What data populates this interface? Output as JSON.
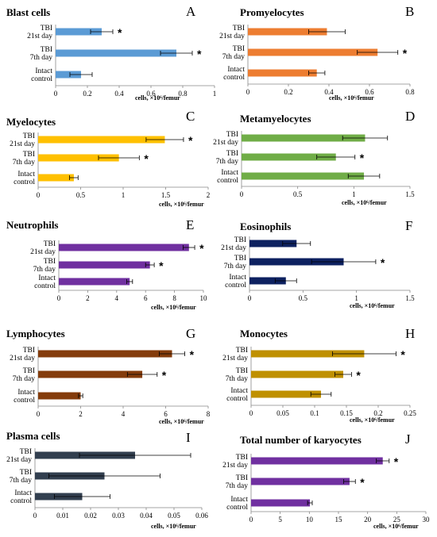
{
  "chart_data": [
    {
      "type": "bar",
      "orientation": "horizontal",
      "title": "Blast cells",
      "letter": "A",
      "color": "#5b9bd5",
      "categories": [
        [
          "TBI",
          "21st day"
        ],
        [
          "TBI",
          "7th day"
        ],
        [
          "Intact",
          "control"
        ]
      ],
      "values": [
        0.29,
        0.76,
        0.16
      ],
      "errors": [
        0.07,
        0.1,
        0.07
      ],
      "significant": [
        true,
        true,
        false
      ],
      "ticks": [
        "0",
        "0.2",
        "0.4",
        "0.6",
        "0.8",
        "1"
      ],
      "xlim": [
        0,
        1
      ],
      "xlabel": "cells, ×10⁶/femur"
    },
    {
      "type": "bar",
      "orientation": "horizontal",
      "title": "Promyelocytes",
      "letter": "B",
      "color": "#ed7d31",
      "categories": [
        [
          "TBI",
          "21st day"
        ],
        [
          "TBI",
          "7th day"
        ],
        [
          "Intact",
          "control"
        ]
      ],
      "values": [
        0.39,
        0.64,
        0.34
      ],
      "errors": [
        0.09,
        0.1,
        0.04
      ],
      "significant": [
        false,
        true,
        false
      ],
      "ticks": [
        "0",
        "0.2",
        "0.4",
        "0.6",
        "0.8"
      ],
      "xlim": [
        0,
        0.8
      ],
      "xlabel": "cells, ×10⁶/femur"
    },
    {
      "type": "bar",
      "orientation": "horizontal",
      "title": "Myelocytes",
      "letter": "C",
      "color": "#ffc000",
      "categories": [
        [
          "TBI",
          "21st day"
        ],
        [
          "TBI",
          "7th day"
        ],
        [
          "Intact",
          "control"
        ]
      ],
      "values": [
        1.49,
        0.95,
        0.42
      ],
      "errors": [
        0.22,
        0.24,
        0.05
      ],
      "significant": [
        true,
        true,
        false
      ],
      "ticks": [
        "0",
        "0.5",
        "1",
        "1.5",
        "2"
      ],
      "xlim": [
        0,
        2
      ],
      "xlabel": "cells, ×10⁶/femur"
    },
    {
      "type": "bar",
      "orientation": "horizontal",
      "title": "Metamyelocytes",
      "letter": "D",
      "color": "#70ad47",
      "categories": [
        [
          "TBI",
          "21st day"
        ],
        [
          "TBI",
          "7th day"
        ],
        [
          "Intact",
          "control"
        ]
      ],
      "values": [
        1.1,
        0.84,
        1.09
      ],
      "errors": [
        0.2,
        0.17,
        0.14
      ],
      "significant": [
        false,
        true,
        false
      ],
      "ticks": [
        "0",
        "0.5",
        "1",
        "1.5"
      ],
      "xlim": [
        0,
        1.5
      ],
      "xlabel": "cells, ×10⁶/femur"
    },
    {
      "type": "bar",
      "orientation": "horizontal",
      "title": "Neutrophils",
      "letter": "E",
      "color": "#7030a0",
      "categories": [
        [
          "TBI",
          "21st day"
        ],
        [
          "TBI",
          "7th day"
        ],
        [
          "Intact",
          "control"
        ]
      ],
      "values": [
        9.0,
        6.3,
        4.9
      ],
      "errors": [
        0.4,
        0.3,
        0.2
      ],
      "significant": [
        true,
        true,
        false
      ],
      "ticks": [
        "0",
        "2",
        "4",
        "6",
        "8",
        "10"
      ],
      "xlim": [
        0,
        10
      ],
      "xlabel": "cells, ×10⁶/femur"
    },
    {
      "type": "bar",
      "orientation": "horizontal",
      "title": "Eosinophils",
      "letter": "F",
      "color": "#0d2160",
      "categories": [
        [
          "TBI",
          "21st day"
        ],
        [
          "TBI",
          "7th day"
        ],
        [
          "Intact",
          "control"
        ]
      ],
      "values": [
        0.44,
        0.88,
        0.34
      ],
      "errors": [
        0.13,
        0.3,
        0.1
      ],
      "significant": [
        false,
        true,
        false
      ],
      "ticks": [
        "0",
        "0.5",
        "1",
        "1.5"
      ],
      "xlim": [
        0,
        1.5
      ],
      "xlabel": "cells, ×10⁶/femur"
    },
    {
      "type": "bar",
      "orientation": "horizontal",
      "title": "Lymphocytes",
      "letter": "G",
      "color": "#843c0c",
      "categories": [
        [
          "TBI",
          "21st day"
        ],
        [
          "TBI",
          "7th day"
        ],
        [
          "Intact",
          "control"
        ]
      ],
      "values": [
        6.3,
        4.9,
        2.0
      ],
      "errors": [
        0.6,
        0.7,
        0.1
      ],
      "significant": [
        true,
        true,
        false
      ],
      "ticks": [
        "0",
        "2",
        "4",
        "6",
        "8"
      ],
      "xlim": [
        0,
        8
      ],
      "xlabel": "cells, ×10⁶/femur"
    },
    {
      "type": "bar",
      "orientation": "horizontal",
      "title": "Monocytes",
      "letter": "H",
      "color": "#bf9000",
      "categories": [
        [
          "TBI",
          "21st day"
        ],
        [
          "TBI",
          "7th day"
        ],
        [
          "Intact",
          "control"
        ]
      ],
      "values": [
        0.178,
        0.145,
        0.11
      ],
      "errors": [
        0.05,
        0.013,
        0.016
      ],
      "significant": [
        true,
        true,
        false
      ],
      "ticks": [
        "0",
        "0.05",
        "0.1",
        "0.15",
        "0.2",
        "0.25"
      ],
      "xlim": [
        0,
        0.25
      ],
      "xlabel": "cells, ×10⁶/femur"
    },
    {
      "type": "bar",
      "orientation": "horizontal",
      "title": "Plasma cells",
      "letter": "I",
      "color": "#323f4f",
      "categories": [
        [
          "TBI",
          "21st day"
        ],
        [
          "TBI",
          "7th day"
        ],
        [
          "Intact",
          "control"
        ]
      ],
      "values": [
        0.036,
        0.025,
        0.017
      ],
      "errors": [
        0.02,
        0.02,
        0.01
      ],
      "significant": [
        false,
        false,
        false
      ],
      "ticks": [
        "0",
        "0.01",
        "0.02",
        "0.03",
        "0.04",
        "0.05",
        "0.06"
      ],
      "xlim": [
        0,
        0.06
      ],
      "xlabel": "cells, ×10⁶/femur"
    },
    {
      "type": "bar",
      "orientation": "horizontal",
      "title": "Total number of karyocytes",
      "letter": "J",
      "color": "#7030a0",
      "categories": [
        [
          "TBI",
          "21st day"
        ],
        [
          "TBI",
          "7th day"
        ],
        [
          "Intact",
          "control"
        ]
      ],
      "values": [
        22.6,
        16.9,
        10.1
      ],
      "errors": [
        1.1,
        1.0,
        0.4
      ],
      "significant": [
        true,
        true,
        false
      ],
      "ticks": [
        "0",
        "5",
        "10",
        "15",
        "20",
        "25",
        "30"
      ],
      "xlim": [
        0,
        30
      ],
      "xlabel": "cells, ×10⁶/femur"
    }
  ],
  "significance_marker": "*"
}
